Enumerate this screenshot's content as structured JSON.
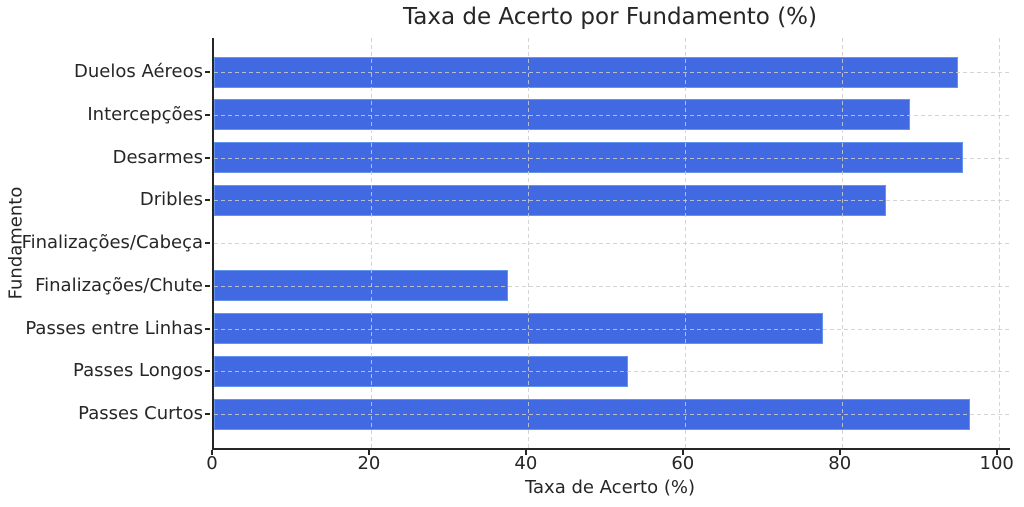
{
  "title": "Taxa de Acerto por Fundamento (%)",
  "chart_data": {
    "type": "bar",
    "orientation": "horizontal",
    "title": "Taxa de Acerto por Fundamento (%)",
    "categories": [
      "Duelos Aéreos",
      "Intercepções",
      "Desarmes",
      "Dribles",
      "Finalizações/Cabeça",
      "Finalizações/Chute",
      "Passes entre Linhas",
      "Passes Longos",
      "Passes Curtos"
    ],
    "values": [
      94.8,
      88.7,
      95.4,
      85.7,
      0,
      37.5,
      77.6,
      52.7,
      96.3
    ],
    "xlabel": "Taxa de Acerto (%)",
    "ylabel": "Fundamento",
    "xlim": [
      0,
      100
    ],
    "xticks": [
      0,
      20,
      40,
      60,
      80,
      100
    ],
    "grid": true,
    "grid_style": "dashed",
    "legend": false,
    "colors": {
      "bar_fill": "#4169e1",
      "bar_edge": "#6495ed",
      "gridline": "#cccccc",
      "spine": "#262626",
      "text": "#262626",
      "background": "#ffffff"
    }
  }
}
